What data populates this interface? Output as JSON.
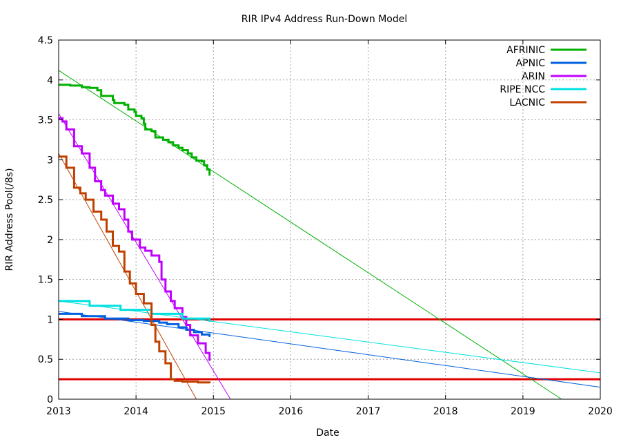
{
  "chart_data": {
    "type": "line",
    "title": "RIR IPv4 Address Run-Down Model",
    "xlabel": "Date",
    "ylabel": "RIR Address Pool(/8s)",
    "xlim": [
      2013,
      2020
    ],
    "ylim": [
      0,
      4.5
    ],
    "x_ticks": [
      2013,
      2014,
      2015,
      2016,
      2017,
      2018,
      2019,
      2020
    ],
    "x_tick_labels": [
      "2013",
      "2014",
      "2015",
      "2016",
      "2017",
      "2018",
      "2019",
      "2020"
    ],
    "y_ticks": [
      0,
      0.5,
      1,
      1.5,
      2,
      2.5,
      3,
      3.5,
      4,
      4.5
    ],
    "y_tick_labels": [
      "0",
      "0.5",
      "1",
      "1.5",
      "2",
      "2.5",
      "3",
      "3.5",
      "4",
      "4.5"
    ],
    "grid": true,
    "legend_position": "top-right",
    "series": [
      {
        "name": "AFRINIC",
        "color": "#00b000",
        "data": [
          [
            2013.0,
            3.94
          ],
          [
            2013.15,
            3.93
          ],
          [
            2013.3,
            3.91
          ],
          [
            2013.4,
            3.9
          ],
          [
            2013.5,
            3.87
          ],
          [
            2013.55,
            3.8
          ],
          [
            2013.7,
            3.75
          ],
          [
            2013.72,
            3.71
          ],
          [
            2013.85,
            3.69
          ],
          [
            2013.9,
            3.63
          ],
          [
            2013.98,
            3.6
          ],
          [
            2014.0,
            3.55
          ],
          [
            2014.07,
            3.52
          ],
          [
            2014.1,
            3.45
          ],
          [
            2014.12,
            3.38
          ],
          [
            2014.2,
            3.36
          ],
          [
            2014.25,
            3.28
          ],
          [
            2014.35,
            3.25
          ],
          [
            2014.42,
            3.22
          ],
          [
            2014.48,
            3.18
          ],
          [
            2014.55,
            3.15
          ],
          [
            2014.6,
            3.12
          ],
          [
            2014.67,
            3.08
          ],
          [
            2014.72,
            3.03
          ],
          [
            2014.78,
            2.99
          ],
          [
            2014.85,
            2.98
          ],
          [
            2014.88,
            2.93
          ],
          [
            2014.92,
            2.88
          ],
          [
            2014.95,
            2.8
          ]
        ],
        "trend": [
          [
            2013.0,
            4.12
          ],
          [
            2019.5,
            0.0
          ]
        ]
      },
      {
        "name": "APNIC",
        "color": "#0060e0",
        "data": [
          [
            2013.0,
            1.07
          ],
          [
            2013.3,
            1.04
          ],
          [
            2013.6,
            1.01
          ],
          [
            2013.9,
            0.99
          ],
          [
            2014.1,
            0.98
          ],
          [
            2014.3,
            0.96
          ],
          [
            2014.4,
            0.94
          ],
          [
            2014.55,
            0.9
          ],
          [
            2014.65,
            0.87
          ],
          [
            2014.75,
            0.84
          ],
          [
            2014.85,
            0.81
          ],
          [
            2014.95,
            0.78
          ]
        ],
        "trend": [
          [
            2013.0,
            1.1
          ],
          [
            2020.0,
            0.15
          ]
        ]
      },
      {
        "name": "ARIN",
        "color": "#c000ff",
        "data": [
          [
            2013.0,
            3.52
          ],
          [
            2013.05,
            3.48
          ],
          [
            2013.1,
            3.38
          ],
          [
            2013.2,
            3.17
          ],
          [
            2013.3,
            3.08
          ],
          [
            2013.4,
            2.9
          ],
          [
            2013.47,
            2.73
          ],
          [
            2013.55,
            2.62
          ],
          [
            2013.6,
            2.55
          ],
          [
            2013.7,
            2.45
          ],
          [
            2013.78,
            2.38
          ],
          [
            2013.85,
            2.25
          ],
          [
            2013.9,
            2.1
          ],
          [
            2013.95,
            2.0
          ],
          [
            2014.05,
            1.9
          ],
          [
            2014.12,
            1.86
          ],
          [
            2014.2,
            1.8
          ],
          [
            2014.3,
            1.72
          ],
          [
            2014.33,
            1.5
          ],
          [
            2014.38,
            1.35
          ],
          [
            2014.45,
            1.23
          ],
          [
            2014.5,
            1.14
          ],
          [
            2014.6,
            1.03
          ],
          [
            2014.65,
            0.93
          ],
          [
            2014.7,
            0.8
          ],
          [
            2014.8,
            0.7
          ],
          [
            2014.9,
            0.58
          ],
          [
            2014.95,
            0.48
          ]
        ],
        "trend": [
          [
            2013.0,
            3.58
          ],
          [
            2015.22,
            0.0
          ]
        ]
      },
      {
        "name": "RIPE NCC",
        "color": "#00e0e0",
        "data": [
          [
            2013.0,
            1.23
          ],
          [
            2013.4,
            1.17
          ],
          [
            2013.8,
            1.12
          ],
          [
            2014.2,
            1.07
          ],
          [
            2014.6,
            1.01
          ],
          [
            2014.95,
            0.97
          ]
        ],
        "trend": [
          [
            2013.0,
            1.23
          ],
          [
            2020.0,
            0.33
          ]
        ]
      },
      {
        "name": "LACNIC",
        "color": "#c04000",
        "data": [
          [
            2013.0,
            3.04
          ],
          [
            2013.1,
            2.9
          ],
          [
            2013.2,
            2.65
          ],
          [
            2013.28,
            2.58
          ],
          [
            2013.35,
            2.5
          ],
          [
            2013.45,
            2.35
          ],
          [
            2013.55,
            2.25
          ],
          [
            2013.62,
            2.1
          ],
          [
            2013.7,
            1.92
          ],
          [
            2013.78,
            1.85
          ],
          [
            2013.85,
            1.6
          ],
          [
            2013.92,
            1.45
          ],
          [
            2014.0,
            1.32
          ],
          [
            2014.1,
            1.2
          ],
          [
            2014.2,
            0.93
          ],
          [
            2014.25,
            0.72
          ],
          [
            2014.3,
            0.6
          ],
          [
            2014.38,
            0.45
          ],
          [
            2014.45,
            0.25
          ],
          [
            2014.5,
            0.23
          ],
          [
            2014.6,
            0.22
          ],
          [
            2014.8,
            0.21
          ],
          [
            2014.95,
            0.2
          ]
        ],
        "trend": [
          [
            2013.0,
            3.08
          ],
          [
            2014.78,
            0.0
          ]
        ]
      }
    ],
    "threshold_lines": [
      {
        "y": 1.0,
        "color": "#e00000"
      },
      {
        "y": 0.25,
        "color": "#e00000"
      }
    ]
  }
}
